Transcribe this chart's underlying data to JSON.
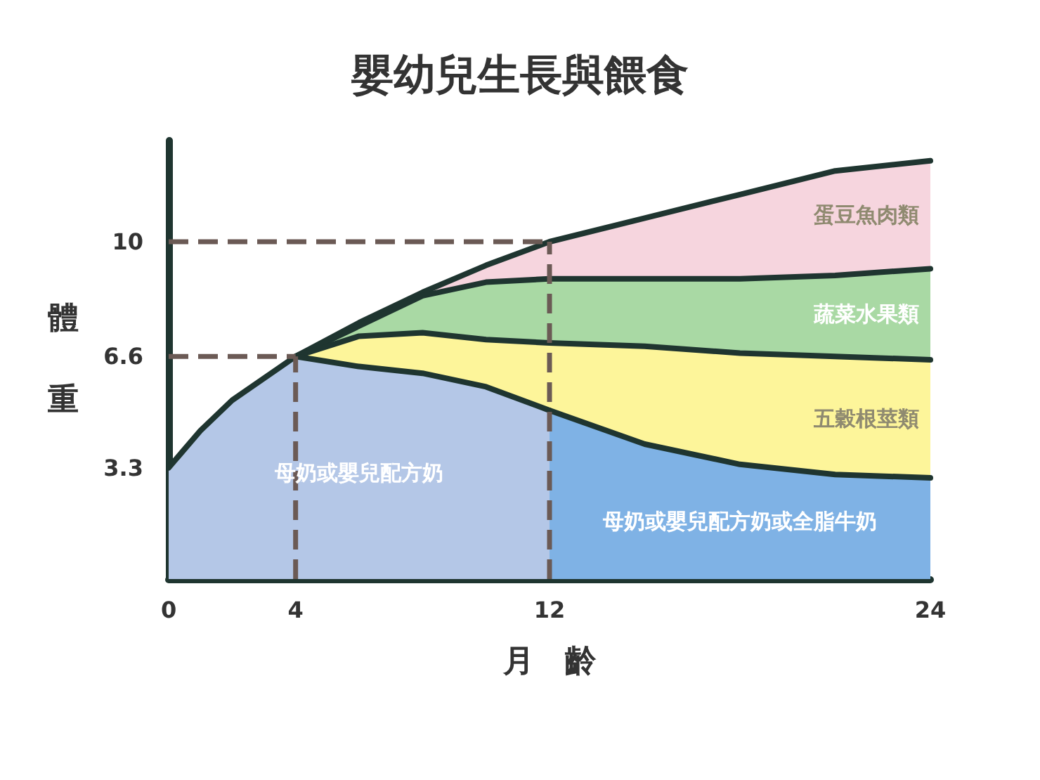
{
  "chart_data": {
    "type": "area",
    "title": "嬰幼兒生長與餵食",
    "xlabel": "月　齡",
    "ylabel": "體重",
    "x": [
      0,
      1,
      2,
      4,
      6,
      8,
      10,
      12,
      15,
      18,
      21,
      24
    ],
    "series": [
      {
        "name": "母奶或嬰兒配方奶",
        "color": "#b4c7e7",
        "values": [
          3.3,
          4.4,
          5.3,
          6.6,
          6.3,
          6.1,
          5.7,
          5.0,
          null,
          null,
          null,
          null
        ]
      },
      {
        "name": "母奶或嬰兒配方奶或全脂牛奶",
        "color": "#7fb2e5",
        "values": [
          null,
          null,
          null,
          null,
          null,
          null,
          null,
          5.0,
          4.0,
          3.4,
          3.1,
          3.0
        ]
      },
      {
        "name": "五穀根莖類",
        "color": "#fdf59a",
        "values": [
          null,
          null,
          null,
          6.6,
          7.2,
          7.3,
          7.1,
          7.0,
          6.9,
          6.7,
          6.6,
          6.5
        ]
      },
      {
        "name": "蔬菜水果類",
        "color": "#a9d9a4",
        "values": [
          null,
          null,
          null,
          6.6,
          7.5,
          8.4,
          8.8,
          8.9,
          8.9,
          8.9,
          9.0,
          9.2
        ]
      },
      {
        "name": "蛋豆魚肉類",
        "color": "#f6d5de",
        "values": [
          null,
          null,
          null,
          6.6,
          7.6,
          8.5,
          9.3,
          10,
          10.7,
          11.4,
          12.1,
          12.4
        ]
      }
    ],
    "xlim": [
      0,
      24
    ],
    "xticks": [
      0,
      4,
      12,
      24
    ],
    "ylim": [
      0,
      13
    ],
    "yticks": [
      3.3,
      6.6,
      10
    ],
    "ref_lines": [
      {
        "axis": "y",
        "value": 6.6,
        "line_style": "dashed"
      },
      {
        "axis": "y",
        "value": 10,
        "line_style": "dashed"
      },
      {
        "axis": "x",
        "value": 4,
        "line_style": "dashed"
      },
      {
        "axis": "x",
        "value": 12,
        "line_style": "dashed"
      }
    ],
    "grid": false,
    "legend": false,
    "marker": "none"
  }
}
